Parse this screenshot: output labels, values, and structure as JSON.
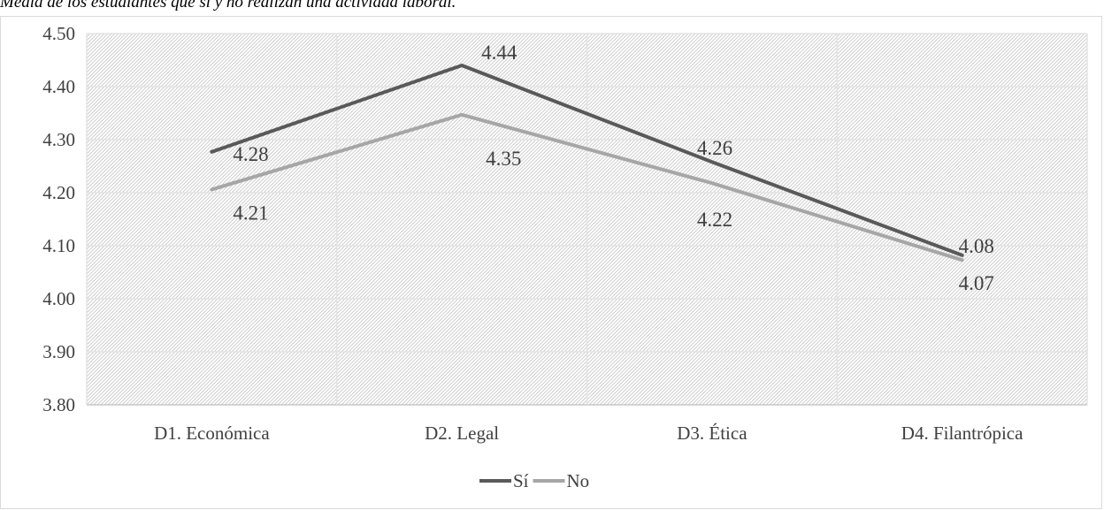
{
  "caption": "Media de los estudiantes que sí y no realizan una actividad laboral.",
  "chart_data": {
    "type": "line",
    "title": "",
    "xlabel": "",
    "ylabel": "",
    "categories": [
      "D1. Económica",
      "D2. Legal",
      "D3. Ética",
      "D4. Filantrópica"
    ],
    "ylim": [
      3.8,
      4.5
    ],
    "yticks": [
      "3.80",
      "3.90",
      "4.00",
      "4.10",
      "4.20",
      "4.30",
      "4.40",
      "4.50"
    ],
    "grid": true,
    "legend_position": "bottom",
    "series": [
      {
        "name": "Sí",
        "color": "#595959",
        "values": [
          4.277,
          4.44,
          4.258,
          4.082
        ],
        "labels": [
          "4.28",
          "4.44",
          "4.26",
          "4.08"
        ]
      },
      {
        "name": "No",
        "color": "#a6a6a6",
        "values": [
          4.206,
          4.347,
          4.218,
          4.073
        ],
        "labels": [
          "4.21",
          "4.35",
          "4.22",
          "4.07"
        ]
      }
    ]
  }
}
